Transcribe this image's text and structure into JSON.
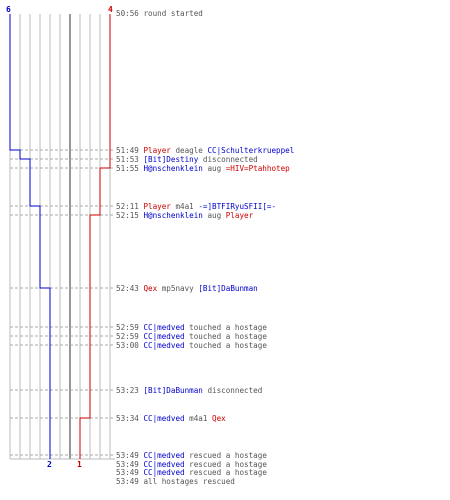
{
  "colors": {
    "blue": "#0000cc",
    "red": "#cc0000",
    "text": "#555555",
    "grid": "#bbbbbb",
    "grid_dark": "#777777",
    "dash": "#aaaaaa"
  },
  "team_labels": {
    "blue_start": "6",
    "red_start": "4",
    "blue_end": "2",
    "red_end": "1"
  },
  "events": [
    {
      "time": "50:56",
      "parts": [
        {
          "t": "round started",
          "c": "text"
        }
      ]
    },
    {
      "time": "51:49",
      "parts": [
        {
          "t": "Player",
          "c": "red"
        },
        {
          "t": " deagle ",
          "c": "text"
        },
        {
          "t": "CC|Schulterkrueppel",
          "c": "blue"
        }
      ]
    },
    {
      "time": "51:53",
      "parts": [
        {
          "t": "[Bit]Destiny",
          "c": "blue"
        },
        {
          "t": " disconnected",
          "c": "text"
        }
      ]
    },
    {
      "time": "51:55",
      "parts": [
        {
          "t": "H@nschenklein",
          "c": "blue"
        },
        {
          "t": " aug ",
          "c": "text"
        },
        {
          "t": "=HIV=Ptahhotep",
          "c": "red"
        }
      ]
    },
    {
      "time": "52:11",
      "parts": [
        {
          "t": "Player",
          "c": "red"
        },
        {
          "t": " m4a1 ",
          "c": "text"
        },
        {
          "t": "-=]BTFIRyuSFII[=-",
          "c": "blue"
        }
      ]
    },
    {
      "time": "52:15",
      "parts": [
        {
          "t": "H@nschenklein",
          "c": "blue"
        },
        {
          "t": " aug ",
          "c": "text"
        },
        {
          "t": "Player",
          "c": "red"
        }
      ]
    },
    {
      "time": "52:43",
      "parts": [
        {
          "t": "Qex",
          "c": "red"
        },
        {
          "t": " mp5navy ",
          "c": "text"
        },
        {
          "t": "[Bit]DaBunman",
          "c": "blue"
        }
      ]
    },
    {
      "time": "52:59",
      "parts": [
        {
          "t": "CC|medved",
          "c": "blue"
        },
        {
          "t": " touched a hostage",
          "c": "text"
        }
      ]
    },
    {
      "time": "52:59",
      "parts": [
        {
          "t": "CC|medved",
          "c": "blue"
        },
        {
          "t": " touched a hostage",
          "c": "text"
        }
      ]
    },
    {
      "time": "53:00",
      "parts": [
        {
          "t": "CC|medved",
          "c": "blue"
        },
        {
          "t": " touched a hostage",
          "c": "text"
        }
      ]
    },
    {
      "time": "53:23",
      "parts": [
        {
          "t": "[Bit]DaBunman",
          "c": "blue"
        },
        {
          "t": " disconnected",
          "c": "text"
        }
      ]
    },
    {
      "time": "53:34",
      "parts": [
        {
          "t": "CC|medved",
          "c": "blue"
        },
        {
          "t": " m4a1 ",
          "c": "text"
        },
        {
          "t": "Qex",
          "c": "red"
        }
      ]
    },
    {
      "time": "53:49",
      "parts": [
        {
          "t": "CC|medved",
          "c": "blue"
        },
        {
          "t": " rescued a hostage",
          "c": "text"
        }
      ]
    },
    {
      "time": "53:49",
      "parts": [
        {
          "t": "CC|medved",
          "c": "blue"
        },
        {
          "t": " rescued a hostage",
          "c": "text"
        }
      ]
    },
    {
      "time": "53:49",
      "parts": [
        {
          "t": "CC|medved",
          "c": "blue"
        },
        {
          "t": " rescued a hostage",
          "c": "text"
        }
      ]
    },
    {
      "time": "53:49",
      "parts": [
        {
          "t": "all hostages rescued",
          "c": "text"
        }
      ]
    }
  ],
  "chart_data": {
    "type": "line",
    "x": [
      "50:56",
      "51:49",
      "51:53",
      "51:55",
      "52:11",
      "52:15",
      "52:43",
      "52:59",
      "52:59",
      "53:00",
      "53:23",
      "53:34",
      "53:49",
      "53:49",
      "53:49",
      "53:49"
    ],
    "series": [
      {
        "color": "blue",
        "values": [
          6,
          5,
          4,
          4,
          3,
          3,
          2,
          2,
          2,
          2,
          2,
          2,
          2,
          2,
          2,
          2
        ]
      },
      {
        "color": "red",
        "values": [
          4,
          4,
          4,
          3,
          3,
          2,
          2,
          2,
          2,
          2,
          2,
          1,
          1,
          1,
          1,
          1
        ]
      }
    ],
    "ylim": [
      0,
      6
    ]
  }
}
